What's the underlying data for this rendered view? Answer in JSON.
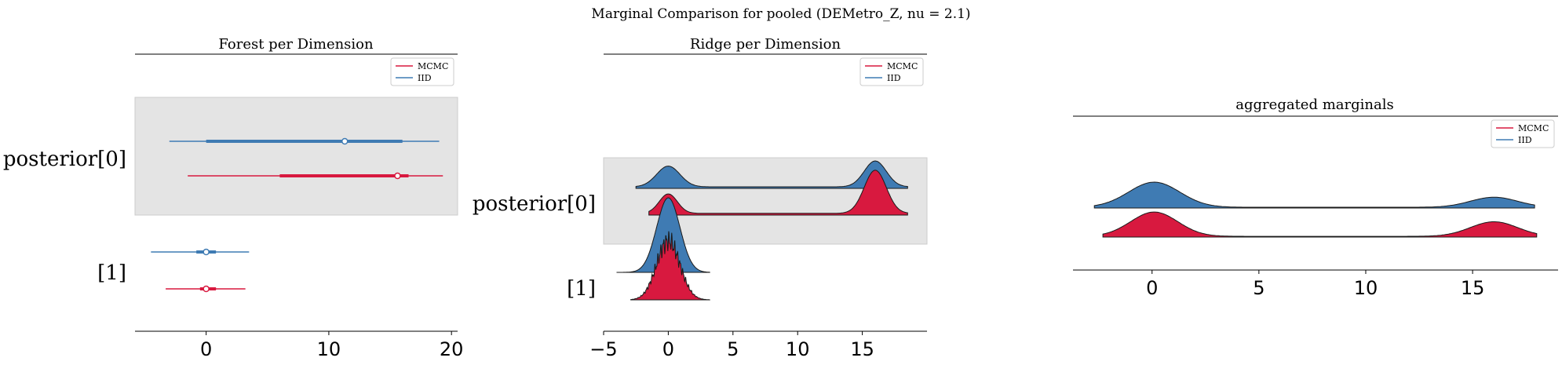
{
  "figure": {
    "suptitle": "Marginal Comparison for pooled (DEMetro_Z, nu = 2.1)"
  },
  "colors": {
    "mcmc": "#d8193f",
    "iid": "#3f7bb3",
    "band": "#e4e4e4"
  },
  "chart_data": [
    {
      "type": "forest",
      "title": "Forest per Dimension",
      "xlim": [
        -5.8,
        20.5
      ],
      "xticks": [
        0,
        10,
        20
      ],
      "tick_labels": [
        "0",
        "10",
        "20"
      ],
      "ylabels": [
        "posterior[0]",
        "[1]"
      ],
      "legend": {
        "position": "top-right",
        "entries": [
          "MCMC",
          "IID"
        ]
      },
      "series": [
        {
          "name": "IID",
          "dimension": "posterior[0]",
          "hdi_94": [
            -3.0,
            19.0
          ],
          "iqr": [
            0.0,
            16.0
          ],
          "point": 11.3
        },
        {
          "name": "MCMC",
          "dimension": "posterior[0]",
          "hdi_94": [
            -1.5,
            19.3
          ],
          "iqr": [
            6.0,
            16.5
          ],
          "point": 15.6
        },
        {
          "name": "IID",
          "dimension": "[1]",
          "hdi_94": [
            -4.5,
            3.5
          ],
          "iqr": [
            -0.8,
            0.8
          ],
          "point": 0.0
        },
        {
          "name": "MCMC",
          "dimension": "[1]",
          "hdi_94": [
            -3.3,
            3.2
          ],
          "iqr": [
            -0.5,
            0.8
          ],
          "point": 0.0
        }
      ]
    },
    {
      "type": "ridge",
      "title": "Ridge per Dimension",
      "xlim": [
        -5,
        20
      ],
      "xticks": [
        -5,
        0,
        5,
        10,
        15
      ],
      "tick_labels": [
        "−5",
        "0",
        "5",
        "10",
        "15"
      ],
      "ylabels": [
        "posterior[0]",
        "[1]"
      ],
      "legend": {
        "position": "top-right",
        "entries": [
          "MCMC",
          "IID"
        ]
      },
      "series": [
        {
          "name": "IID",
          "dimension": "posterior[0]",
          "range": [
            -2.5,
            18.5
          ],
          "modes": [
            0,
            16
          ],
          "relative_peak_heights": [
            0.8,
            1.0
          ]
        },
        {
          "name": "MCMC",
          "dimension": "posterior[0]",
          "range": [
            -1.5,
            18.5
          ],
          "modes": [
            0,
            16
          ],
          "relative_peak_heights": [
            0.45,
            1.0
          ]
        },
        {
          "name": "IID",
          "dimension": "[1]",
          "range": [
            -4,
            3.2
          ],
          "modes": [
            0
          ],
          "relative_peak_heights": [
            1.0
          ]
        },
        {
          "name": "MCMC",
          "dimension": "[1]",
          "range": [
            -2.9,
            3.2
          ],
          "modes": [
            0
          ],
          "relative_peak_heights": [
            1.0
          ]
        }
      ]
    },
    {
      "type": "ridge",
      "title": "aggregated marginals",
      "xlim": [
        -3.7,
        19.0
      ],
      "xticks": [
        0,
        5,
        10,
        15
      ],
      "tick_labels": [
        "0",
        "5",
        "10",
        "15"
      ],
      "legend": {
        "position": "top-right",
        "entries": [
          "MCMC",
          "IID"
        ]
      },
      "series": [
        {
          "name": "IID",
          "range": [
            -2.7,
            17.9
          ],
          "modes": [
            0.1,
            16.0
          ],
          "relative_peak_heights": [
            1.0,
            0.4
          ]
        },
        {
          "name": "MCMC",
          "range": [
            -2.3,
            18.0
          ],
          "modes": [
            0.1,
            16.0
          ],
          "relative_peak_heights": [
            1.0,
            0.6
          ]
        }
      ]
    }
  ]
}
